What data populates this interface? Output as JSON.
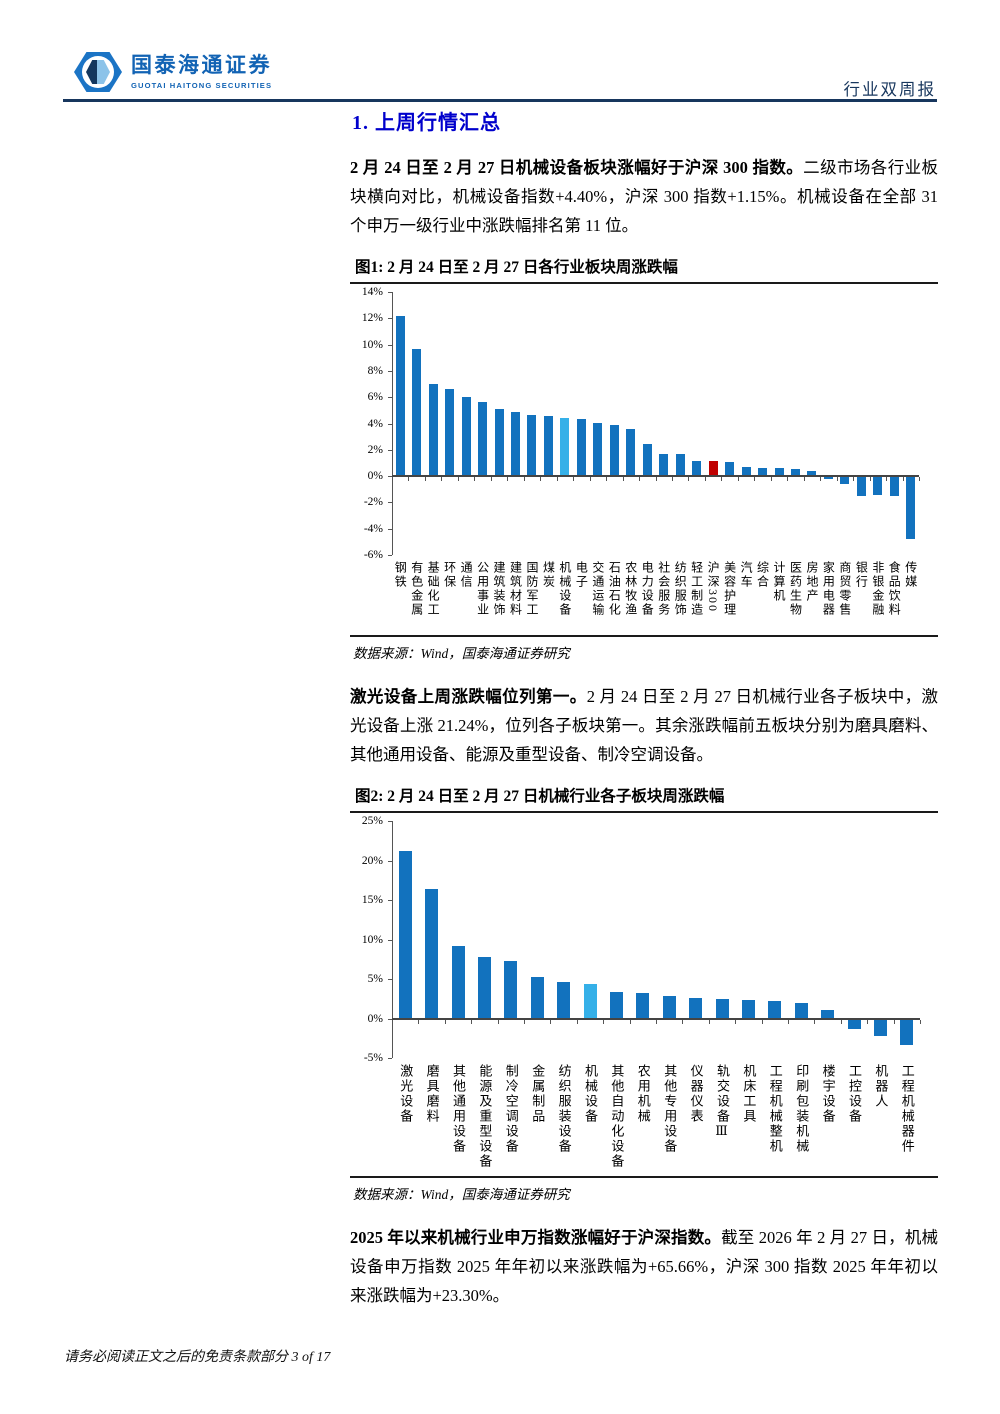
{
  "header": {
    "brand_cn": "国泰海通证券",
    "brand_en": "GUOTAI HAITONG SECURITIES",
    "report_type": "行业双周报"
  },
  "section_title": "1.  上周行情汇总",
  "paragraphs": [
    {
      "bold": "2 月 24 日至 2 月 27 日机械设备板块涨幅好于沪深 300 指数。",
      "rest": "二级市场各行业板块横向对比，机械设备指数+4.40%，沪深 300 指数+1.15%。机械设备在全部 31 个申万一级行业中涨跌幅排名第 11 位。"
    },
    {
      "bold": "激光设备上周涨跌幅位列第一。",
      "rest": "2 月 24 日至 2 月 27 日机械行业各子板块中，激光设备上涨 21.24%，位列各子板块第一。其余涨跌幅前五板块分别为磨具磨料、其他通用设备、能源及重型设备、制冷空调设备。"
    },
    {
      "bold": "2025 年以来机械行业申万指数涨幅好于沪深指数。",
      "rest": "截至 2026 年 2 月 27 日，机械设备申万指数 2025 年年初以来涨跌幅为+65.66%，沪深 300 指数 2025 年年初以来涨跌幅为+23.30%。"
    }
  ],
  "figures": [
    {
      "caption": "图1: 2 月 24 日至 2 月 27 日各行业板块周涨跌幅",
      "source": "数据来源：Wind，国泰海通证券研究"
    },
    {
      "caption": "图2: 2 月 24 日至 2 月 27 日机械行业各子板块周涨跌幅",
      "source": "数据来源：Wind，国泰海通证券研究"
    }
  ],
  "chart_data": [
    {
      "type": "bar",
      "title": "2 月 24 日至 2 月 27 日各行业板块周涨跌幅",
      "categories": [
        "钢铁",
        "有色金属",
        "基础化工",
        "环保",
        "通信",
        "公用事业",
        "建筑装饰",
        "建筑材料",
        "国防军工",
        "煤炭",
        "机械设备",
        "电子",
        "交通运输",
        "石油石化",
        "农林牧渔",
        "电力设备",
        "社会服务",
        "纺织服饰",
        "轻工制造",
        "沪深300",
        "美容护理",
        "汽车",
        "综合",
        "计算机",
        "医药生物",
        "房地产",
        "家用电器",
        "商贸零售",
        "银行",
        "非银金融",
        "食品饮料",
        "传媒"
      ],
      "values": [
        12.2,
        9.7,
        7.0,
        6.6,
        6.0,
        5.6,
        5.1,
        4.9,
        4.65,
        4.6,
        4.4,
        4.35,
        4.05,
        3.9,
        3.55,
        2.45,
        1.65,
        1.65,
        1.15,
        1.15,
        1.1,
        0.7,
        0.65,
        0.6,
        0.55,
        0.35,
        -0.2,
        -0.6,
        -1.5,
        -1.4,
        -1.55,
        -4.8
      ],
      "xlabel": "",
      "ylabel": "",
      "ylim": [
        -6,
        14
      ],
      "ytick_step": 2,
      "grid": false,
      "legend": "none",
      "highlight_index": 10,
      "red_index": 19,
      "colors": {
        "bar": "#1272be",
        "highlight": "#35b0e8",
        "red": "#c00000"
      }
    },
    {
      "type": "bar",
      "title": "2 月 24 日至 2 月 27 日机械行业各子板块周涨跌幅",
      "categories": [
        "激光设备",
        "磨具磨料",
        "其他通用设备",
        "能源及重型设备",
        "制冷空调设备",
        "金属制品",
        "纺织服装设备",
        "机械设备",
        "其他自动化设备",
        "农用机械",
        "其他专用设备",
        "仪器仪表",
        "轨交设备Ⅲ",
        "机床工具",
        "工程机械整机",
        "印刷包装机械",
        "楼宇设备",
        "工控设备",
        "机器人",
        "工程机械器件"
      ],
      "values": [
        21.24,
        16.4,
        9.2,
        7.8,
        7.3,
        5.3,
        4.6,
        4.4,
        3.4,
        3.2,
        2.85,
        2.65,
        2.45,
        2.3,
        2.2,
        1.9,
        1.1,
        -1.3,
        -2.2,
        -3.3
      ],
      "xlabel": "",
      "ylabel": "",
      "ylim": [
        -5,
        25
      ],
      "ytick_step": 5,
      "grid": false,
      "legend": "none",
      "highlight_index": 7,
      "red_index": -1,
      "colors": {
        "bar": "#1272be",
        "highlight": "#35b0e8",
        "red": "#c00000"
      }
    }
  ],
  "footer": {
    "disclaimer": "请务必阅读正文之后的免责条款部分",
    "page": "3 of 17"
  }
}
